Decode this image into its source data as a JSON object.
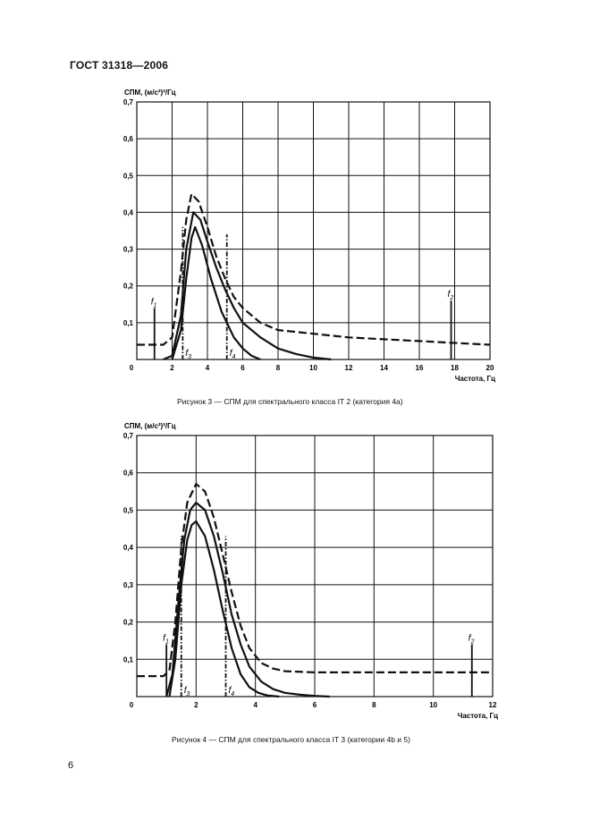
{
  "document": {
    "header": "ГОСТ 31318—2006",
    "page_number": "6"
  },
  "chart_data": [
    {
      "type": "line",
      "ylabel": "СПМ, (м/с²)²/Гц",
      "xlabel": "Частота, Гц",
      "xlim": [
        0,
        20
      ],
      "ylim": [
        0,
        0.7
      ],
      "x_ticks": [
        "0",
        "2",
        "4",
        "6",
        "8",
        "10",
        "12",
        "14",
        "16",
        "18",
        "20"
      ],
      "y_ticks": [
        "0",
        "0,1",
        "0,2",
        "0,3",
        "0,4",
        "0,5",
        "0,6",
        "0,7"
      ],
      "caption": "Рисунок 3 — СПМ для спектрального класса IT 2 (категория 4а)",
      "markers": [
        {
          "label": "f1",
          "x": 1.0,
          "height": 0.14
        },
        {
          "label": "f3",
          "x": 2.6,
          "height": 0.36
        },
        {
          "label": "f4",
          "x": 5.1,
          "height": 0.34
        },
        {
          "label": "f2",
          "x": 17.8,
          "height": 0.16
        }
      ],
      "series": [
        {
          "style": "dashed",
          "peak_x": 3.1,
          "peak_y": 0.45,
          "floor": 0.04,
          "x": [
            0,
            1.5,
            2,
            2.5,
            2.8,
            3.1,
            3.5,
            4,
            4.5,
            5,
            5.5,
            6,
            7,
            8,
            10,
            12,
            14,
            16,
            18,
            20
          ],
          "y": [
            0.04,
            0.04,
            0.06,
            0.24,
            0.38,
            0.45,
            0.43,
            0.36,
            0.28,
            0.22,
            0.17,
            0.14,
            0.1,
            0.08,
            0.07,
            0.06,
            0.055,
            0.05,
            0.045,
            0.04
          ]
        },
        {
          "style": "solid",
          "peak_x": 3.2,
          "peak_y": 0.4,
          "x": [
            1.5,
            2,
            2.5,
            2.8,
            3.2,
            3.6,
            4,
            4.5,
            5,
            5.5,
            6,
            7,
            8,
            9,
            10,
            11
          ],
          "y": [
            0.0,
            0.01,
            0.12,
            0.3,
            0.4,
            0.38,
            0.32,
            0.25,
            0.19,
            0.14,
            0.1,
            0.06,
            0.03,
            0.015,
            0.005,
            0.0
          ]
        },
        {
          "style": "solid",
          "peak_x": 3.3,
          "peak_y": 0.36,
          "x": [
            2.0,
            2.5,
            2.8,
            3.1,
            3.3,
            3.7,
            4.2,
            4.8,
            5.5,
            6,
            6.5,
            7
          ],
          "y": [
            0.0,
            0.08,
            0.22,
            0.33,
            0.36,
            0.31,
            0.22,
            0.13,
            0.06,
            0.03,
            0.01,
            0.0
          ]
        }
      ]
    },
    {
      "type": "line",
      "ylabel": "СПМ, (м/с²)²/Гц",
      "xlabel": "Частота, Гц",
      "xlim": [
        0,
        12
      ],
      "ylim": [
        0,
        0.7
      ],
      "x_ticks": [
        "0",
        "2",
        "4",
        "6",
        "8",
        "10",
        "12"
      ],
      "y_ticks": [
        "0",
        "0,1",
        "0,2",
        "0,3",
        "0,4",
        "0,5",
        "0,6",
        "0,7"
      ],
      "caption": "Рисунок 4 — СПМ для спектрального класса IT 3 (категории 4b и 5)",
      "markers": [
        {
          "label": "f1",
          "x": 1.0,
          "height": 0.14
        },
        {
          "label": "f3",
          "x": 1.5,
          "height": 0.43
        },
        {
          "label": "f4",
          "x": 3.0,
          "height": 0.43
        },
        {
          "label": "f2",
          "x": 11.3,
          "height": 0.14
        }
      ],
      "series": [
        {
          "style": "dashed",
          "peak_x": 2.0,
          "peak_y": 0.57,
          "floor": 0.065,
          "x": [
            0,
            0.9,
            1.1,
            1.3,
            1.5,
            1.7,
            2.0,
            2.3,
            2.6,
            2.9,
            3.2,
            3.5,
            3.8,
            4.2,
            4.6,
            5,
            6,
            8,
            10,
            12
          ],
          "y": [
            0.055,
            0.055,
            0.07,
            0.2,
            0.4,
            0.52,
            0.57,
            0.55,
            0.48,
            0.38,
            0.28,
            0.19,
            0.13,
            0.09,
            0.075,
            0.068,
            0.065,
            0.065,
            0.065,
            0.065
          ]
        },
        {
          "style": "solid",
          "peak_x": 2.0,
          "peak_y": 0.52,
          "x": [
            1.0,
            1.2,
            1.4,
            1.6,
            1.8,
            2.0,
            2.3,
            2.6,
            2.9,
            3.2,
            3.5,
            3.8,
            4.2,
            4.6,
            5,
            5.5,
            6,
            6.5
          ],
          "y": [
            0.0,
            0.06,
            0.25,
            0.42,
            0.5,
            0.52,
            0.5,
            0.43,
            0.33,
            0.22,
            0.14,
            0.08,
            0.04,
            0.02,
            0.01,
            0.005,
            0.002,
            0.0
          ]
        },
        {
          "style": "solid",
          "peak_x": 2.0,
          "peak_y": 0.47,
          "x": [
            1.1,
            1.3,
            1.5,
            1.7,
            1.85,
            2.0,
            2.3,
            2.6,
            2.9,
            3.2,
            3.5,
            3.8,
            4.1,
            4.4,
            4.8
          ],
          "y": [
            0.0,
            0.1,
            0.3,
            0.42,
            0.46,
            0.47,
            0.43,
            0.34,
            0.23,
            0.13,
            0.06,
            0.025,
            0.01,
            0.003,
            0.0
          ]
        }
      ]
    }
  ]
}
